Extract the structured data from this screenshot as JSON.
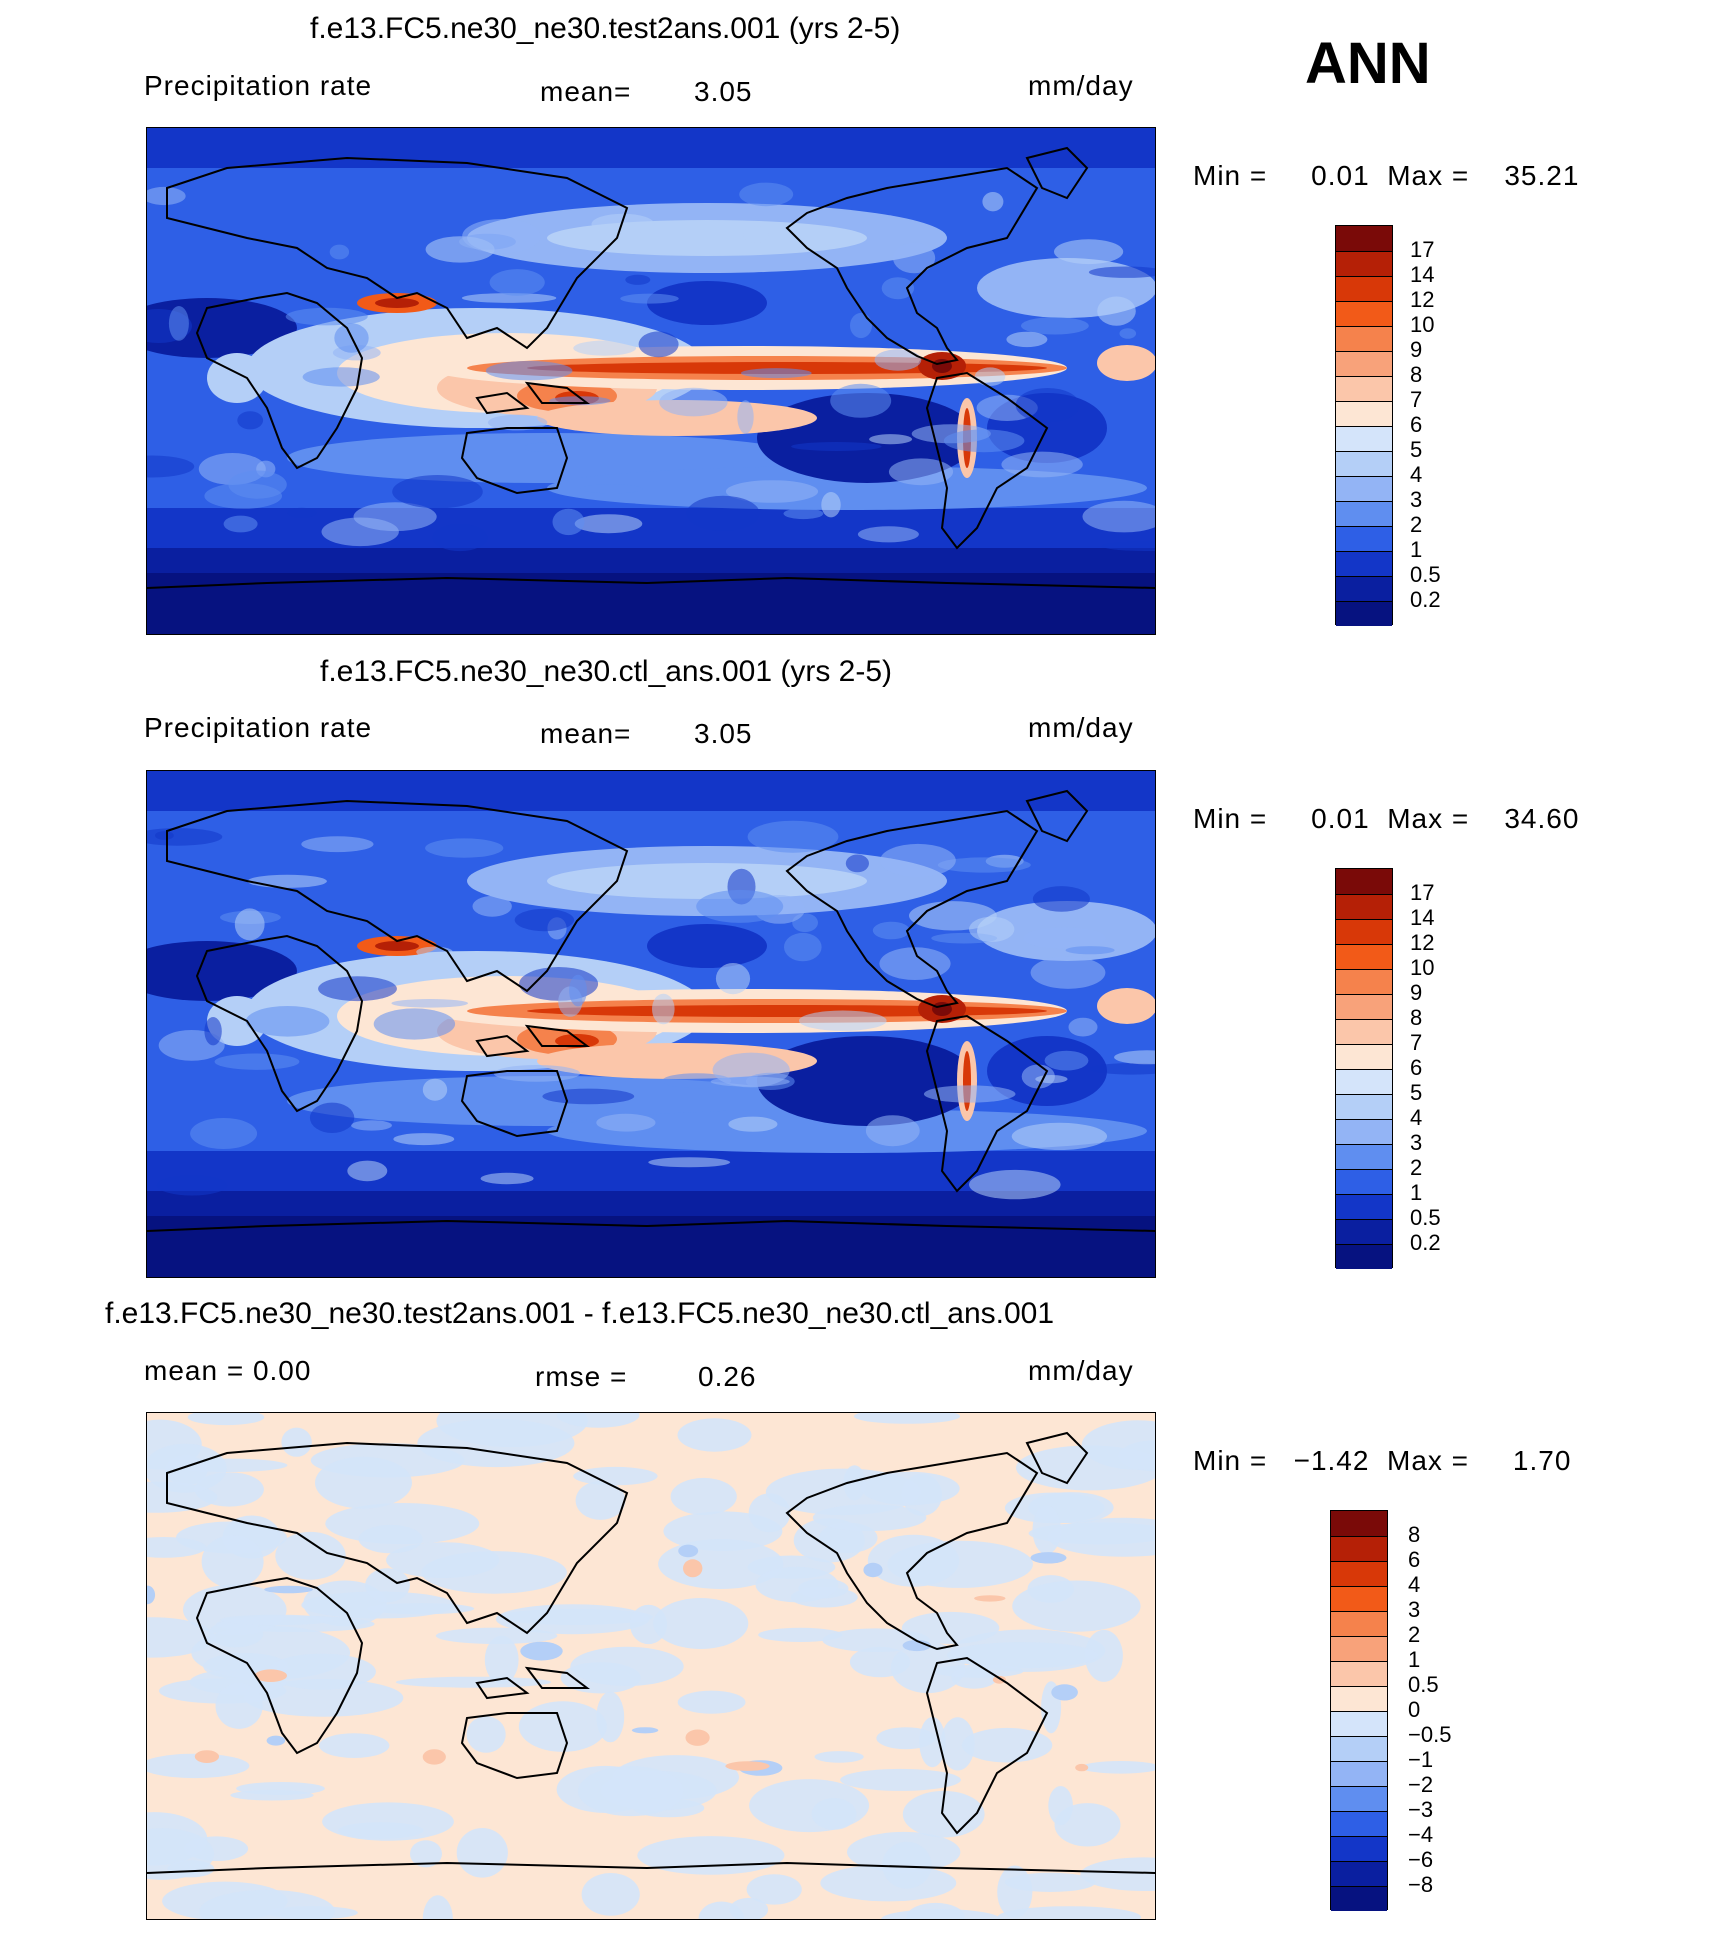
{
  "season": "ANN",
  "panels": [
    {
      "title": "f.e13.FC5.ne30_ne30.test2ans.001 (yrs 2-5)",
      "left_label": "Precipitation  rate",
      "mid_label": "mean=",
      "mid_value": "3.05",
      "units": "mm/day",
      "stats": "Min =     0.01  Max =    35.21",
      "colorbar": {
        "labels": [
          "17",
          "14",
          "12",
          "10",
          "9",
          "8",
          "7",
          "6",
          "5",
          "4",
          "3",
          "2",
          "1",
          "0.5",
          "0.2"
        ],
        "colors": [
          "#7a0a08",
          "#b52006",
          "#d83808",
          "#f25a18",
          "#f5824c",
          "#f8a27a",
          "#fbc6aa",
          "#fde6d4",
          "#d4e4fa",
          "#b4cff7",
          "#93b4f5",
          "#5f8ef0",
          "#2e5fe6",
          "#1336c8",
          "#0a1fa0",
          "#061280"
        ]
      },
      "map_kind": "precip"
    },
    {
      "title": "f.e13.FC5.ne30_ne30.ctl_ans.001 (yrs 2-5)",
      "left_label": "Precipitation  rate",
      "mid_label": "mean=",
      "mid_value": "3.05",
      "units": "mm/day",
      "stats": "Min =     0.01  Max =    34.60",
      "colorbar": {
        "labels": [
          "17",
          "14",
          "12",
          "10",
          "9",
          "8",
          "7",
          "6",
          "5",
          "4",
          "3",
          "2",
          "1",
          "0.5",
          "0.2"
        ],
        "colors": [
          "#7a0a08",
          "#b52006",
          "#d83808",
          "#f25a18",
          "#f5824c",
          "#f8a27a",
          "#fbc6aa",
          "#fde6d4",
          "#d4e4fa",
          "#b4cff7",
          "#93b4f5",
          "#5f8ef0",
          "#2e5fe6",
          "#1336c8",
          "#0a1fa0",
          "#061280"
        ]
      },
      "map_kind": "precip"
    },
    {
      "title": "f.e13.FC5.ne30_ne30.test2ans.001 - f.e13.FC5.ne30_ne30.ctl_ans.001",
      "left_label": "mean  =     0.00",
      "mid_label": "rmse  =",
      "mid_value": "0.26",
      "units": "mm/day",
      "stats": "Min =   −1.42  Max =     1.70",
      "colorbar": {
        "labels": [
          "8",
          "6",
          "4",
          "3",
          "2",
          "1",
          "0.5",
          "0",
          "−0.5",
          "−1",
          "−2",
          "−3",
          "−4",
          "−6",
          "−8"
        ],
        "colors": [
          "#7a0a08",
          "#b52006",
          "#d83808",
          "#f25a18",
          "#f5824c",
          "#f8a27a",
          "#fbc6aa",
          "#fde6d4",
          "#d4e4fa",
          "#b4cff7",
          "#93b4f5",
          "#5f8ef0",
          "#2e5fe6",
          "#1336c8",
          "#0a1fa0",
          "#061280"
        ]
      },
      "map_kind": "diff"
    }
  ]
}
